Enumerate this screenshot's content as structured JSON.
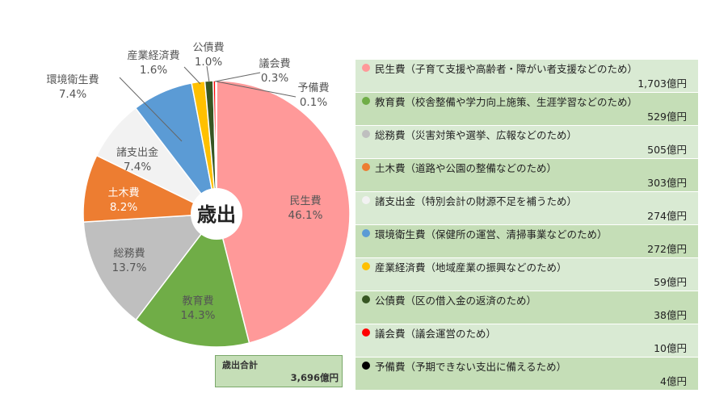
{
  "chart_data": {
    "type": "pie",
    "title": "",
    "center_label": "歳出",
    "slices": [
      {
        "name": "民生費",
        "percent": 46.1,
        "amount": "1,703億円",
        "description": "民生費（子育て支援や高齢者・障がい者支援などのため）",
        "color": "#ff9999"
      },
      {
        "name": "教育費",
        "percent": 14.3,
        "amount": "529億円",
        "description": "教育費（校舎整備や学力向上施策、生涯学習などのため）",
        "color": "#70ad47"
      },
      {
        "name": "総務費",
        "percent": 13.7,
        "amount": "505億円",
        "description": "総務費（災害対策や選挙、広報などのため）",
        "color": "#bfbfbf"
      },
      {
        "name": "土木費",
        "percent": 8.2,
        "amount": "303億円",
        "description": "土木費（道路や公園の整備などのため）",
        "color": "#ed7d31"
      },
      {
        "name": "諸支出金",
        "percent": 7.4,
        "amount": "274億円",
        "description": "諸支出金（特別会計の財源不足を補うため）",
        "color": "#f2f2f2"
      },
      {
        "name": "環境衛生費",
        "percent": 7.4,
        "amount": "272億円",
        "description": "環境衛生費（保健所の運営、清掃事業などのため）",
        "color": "#5b9bd5"
      },
      {
        "name": "産業経済費",
        "percent": 1.6,
        "amount": "59億円",
        "description": "産業経済費（地域産業の振興などのため）",
        "color": "#ffc000"
      },
      {
        "name": "公債費",
        "percent": 1.0,
        "amount": "38億円",
        "description": "公債費（区の借入金の返済のため）",
        "color": "#375623"
      },
      {
        "name": "議会費",
        "percent": 0.3,
        "amount": "10億円",
        "description": "議会費（議会運営のため）",
        "color": "#ff0000"
      },
      {
        "name": "予備費",
        "percent": 0.1,
        "amount": "4億円",
        "description": "予備費（予期できない支出に備えるため）",
        "color": "#000000"
      }
    ],
    "total_label": "歳出合計",
    "total_value": "3,696億円"
  }
}
